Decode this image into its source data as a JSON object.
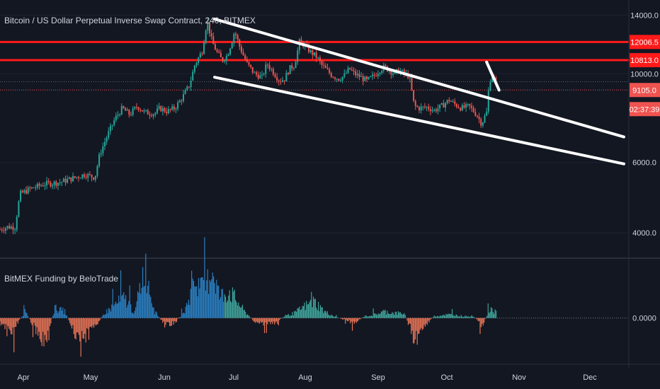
{
  "header": {
    "title": "Bitcoin / US Dollar Perpetual Inverse Swap Contract, 240, BITMEX"
  },
  "indicator": {
    "title": "BitMEX Funding by BeloTrade"
  },
  "colors": {
    "background": "#131722",
    "up": "#26a69a",
    "down": "#ef5350",
    "level_line": "#ff1a1a",
    "trendline": "#ffffff",
    "axis_text": "#d1d4dc",
    "funding_pos": "#2a7fc1",
    "funding_neg": "#e57355"
  },
  "chart_data": [
    {
      "type": "line",
      "name": "price",
      "x_ticks": [
        "Apr",
        "May",
        "Jun",
        "Jul",
        "Aug",
        "Sep",
        "Oct",
        "Nov",
        "Dec"
      ],
      "y_ticks": [
        "14000.0",
        "10000.0",
        "6000.0",
        "4000.0"
      ],
      "ylim": [
        3500,
        14800
      ],
      "log_scale": true,
      "x_domain": [
        0,
        252
      ],
      "series_points": [
        [
          0,
          4080
        ],
        [
          3,
          4140
        ],
        [
          6,
          4130
        ],
        [
          8,
          5000
        ],
        [
          12,
          5150
        ],
        [
          18,
          5300
        ],
        [
          24,
          5350
        ],
        [
          30,
          5500
        ],
        [
          34,
          5600
        ],
        [
          38,
          5500
        ],
        [
          40,
          6300
        ],
        [
          43,
          7000
        ],
        [
          46,
          7700
        ],
        [
          49,
          8200
        ],
        [
          52,
          7900
        ],
        [
          55,
          8300
        ],
        [
          58,
          8000
        ],
        [
          62,
          7950
        ],
        [
          64,
          8200
        ],
        [
          67,
          8050
        ],
        [
          70,
          8200
        ],
        [
          73,
          8700
        ],
        [
          76,
          9400
        ],
        [
          78,
          10500
        ],
        [
          81,
          11400
        ],
        [
          83,
          13600
        ],
        [
          85,
          12000
        ],
        [
          87,
          11300
        ],
        [
          89,
          10800
        ],
        [
          91,
          11100
        ],
        [
          93,
          12100
        ],
        [
          94,
          12800
        ],
        [
          96,
          11700
        ],
        [
          99,
          10600
        ],
        [
          102,
          10000
        ],
        [
          105,
          9800
        ],
        [
          107,
          10600
        ],
        [
          109,
          10200
        ],
        [
          112,
          9600
        ],
        [
          114,
          9700
        ],
        [
          116,
          10300
        ],
        [
          118,
          10500
        ],
        [
          120,
          12000
        ],
        [
          122,
          11800
        ],
        [
          124,
          11400
        ],
        [
          127,
          11000
        ],
        [
          129,
          10500
        ],
        [
          131,
          10200
        ],
        [
          133,
          9900
        ],
        [
          136,
          9700
        ],
        [
          138,
          9900
        ],
        [
          140,
          10300
        ],
        [
          142,
          10000
        ],
        [
          144,
          9850
        ],
        [
          147,
          9600
        ],
        [
          150,
          9900
        ],
        [
          152,
          10200
        ],
        [
          154,
          10400
        ],
        [
          156,
          10200
        ],
        [
          158,
          10000
        ],
        [
          160,
          10200
        ],
        [
          162,
          10000
        ],
        [
          164,
          9850
        ],
        [
          166,
          8300
        ],
        [
          168,
          8200
        ],
        [
          171,
          8250
        ],
        [
          174,
          8100
        ],
        [
          177,
          8300
        ],
        [
          180,
          8600
        ],
        [
          182,
          8400
        ],
        [
          185,
          8200
        ],
        [
          188,
          8300
        ],
        [
          191,
          7900
        ],
        [
          193,
          7500
        ],
        [
          195,
          8000
        ],
        [
          196,
          9400
        ],
        [
          197,
          10000
        ],
        [
          198,
          9700
        ],
        [
          199,
          9400
        ]
      ],
      "levels": [
        "12006.5",
        "10813.0"
      ],
      "dotted_levels": [
        "9105.0"
      ],
      "last_price_label": "9105.0",
      "countdown": "02:37:39",
      "trendlines": [
        {
          "from": [
            86,
            13700
          ],
          "to": [
            250,
            6950
          ]
        },
        {
          "from": [
            86,
            9800
          ],
          "to": [
            250,
            5950
          ]
        },
        {
          "from": [
            195,
            10700
          ],
          "to": [
            200,
            9100
          ]
        }
      ]
    },
    {
      "type": "bar",
      "name": "funding",
      "ylim": [
        -0.0025,
        0.0035
      ],
      "y_ticks": [
        "0.0000"
      ],
      "x_domain": [
        0,
        252
      ],
      "series_points": [
        [
          0,
          -0.0003
        ],
        [
          5,
          -0.0008
        ],
        [
          10,
          0.0004
        ],
        [
          14,
          -0.0006
        ],
        [
          18,
          -0.0015
        ],
        [
          22,
          0.0006
        ],
        [
          26,
          0.0004
        ],
        [
          30,
          -0.0009
        ],
        [
          34,
          -0.0012
        ],
        [
          38,
          -0.0005
        ],
        [
          42,
          0.0003
        ],
        [
          46,
          0.0008
        ],
        [
          50,
          0.0012
        ],
        [
          54,
          0.0003
        ],
        [
          58,
          0.0032
        ],
        [
          62,
          0.0004
        ],
        [
          66,
          -0.0004
        ],
        [
          70,
          -0.0003
        ],
        [
          74,
          0.0004
        ],
        [
          78,
          0.0022
        ],
        [
          82,
          0.0016
        ],
        [
          85,
          0.0031
        ],
        [
          88,
          0.0013
        ],
        [
          92,
          0.0016
        ],
        [
          95,
          0.001
        ],
        [
          98,
          0.0004
        ],
        [
          102,
          -0.0002
        ],
        [
          106,
          -0.0004
        ],
        [
          110,
          -0.0003
        ],
        [
          114,
          0.0001
        ],
        [
          118,
          0.0003
        ],
        [
          122,
          0.0007
        ],
        [
          126,
          0.001
        ],
        [
          130,
          0.0004
        ],
        [
          134,
          0.0001
        ],
        [
          138,
          -0.0001
        ],
        [
          142,
          -0.0003
        ],
        [
          146,
          0.0001
        ],
        [
          150,
          0.0002
        ],
        [
          154,
          0.0004
        ],
        [
          158,
          0.0003
        ],
        [
          162,
          0.0003
        ],
        [
          166,
          -0.0012
        ],
        [
          170,
          -0.0005
        ],
        [
          174,
          0.0001
        ],
        [
          178,
          0.0002
        ],
        [
          182,
          0.0002
        ],
        [
          186,
          0.0001
        ],
        [
          190,
          0.0001
        ],
        [
          193,
          -0.0005
        ],
        [
          196,
          0.0004
        ],
        [
          199,
          0.0005
        ]
      ]
    }
  ]
}
